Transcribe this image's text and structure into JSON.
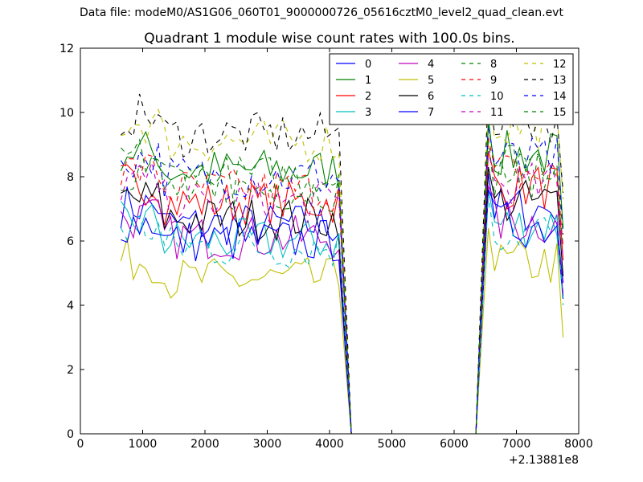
{
  "figure": {
    "suptitle": "Data file: modeM0/AS1G06_060T01_9000000726_05616cztM0_level2_quad_clean.evt"
  },
  "chart_data": {
    "type": "line",
    "title": "Quadrant 1 module wise count rates with 100.0s bins.",
    "xlabel": "",
    "ylabel": "",
    "x_offset_label": "+2.13881e8",
    "xlim": [
      0,
      8000
    ],
    "ylim": [
      0,
      12
    ],
    "xticks": [
      0,
      1000,
      2000,
      3000,
      4000,
      5000,
      6000,
      7000,
      8000
    ],
    "yticks": [
      0,
      2,
      4,
      6,
      8,
      10,
      12
    ],
    "grid": false,
    "legend_position": "top-right",
    "legend_columns": 4,
    "series": [
      {
        "name": "0",
        "color": "#0000ff",
        "dashed": false,
        "base": 6.5
      },
      {
        "name": "1",
        "color": "#008000",
        "dashed": false,
        "base": 8.2
      },
      {
        "name": "2",
        "color": "#ff0000",
        "dashed": false,
        "base": 7.2
      },
      {
        "name": "3",
        "color": "#00bfbf",
        "dashed": false,
        "base": 6.0
      },
      {
        "name": "4",
        "color": "#bf00bf",
        "dashed": false,
        "base": 6.1
      },
      {
        "name": "5",
        "color": "#bfbf00",
        "dashed": false,
        "base": 4.8
      },
      {
        "name": "6",
        "color": "#000000",
        "dashed": false,
        "base": 6.7
      },
      {
        "name": "7",
        "color": "#0000ff",
        "dashed": false,
        "base": 6.0
      },
      {
        "name": "8",
        "color": "#008000",
        "dashed": true,
        "base": 7.6
      },
      {
        "name": "9",
        "color": "#ff0000",
        "dashed": true,
        "base": 7.6
      },
      {
        "name": "10",
        "color": "#00bfbf",
        "dashed": true,
        "base": 5.8
      },
      {
        "name": "11",
        "color": "#bf00bf",
        "dashed": true,
        "base": 7.2
      },
      {
        "name": "12",
        "color": "#bfbf00",
        "dashed": true,
        "base": 9.1
      },
      {
        "name": "13",
        "color": "#000000",
        "dashed": true,
        "base": 9.3
      },
      {
        "name": "14",
        "color": "#0000ff",
        "dashed": true,
        "base": 8.0
      },
      {
        "name": "15",
        "color": "#008000",
        "dashed": true,
        "base": 8.0
      }
    ],
    "active_intervals": [
      [
        650,
        4150
      ],
      [
        6550,
        7750
      ]
    ],
    "zero_interval": [
      4350,
      6350
    ],
    "bin_width_s": 100
  }
}
